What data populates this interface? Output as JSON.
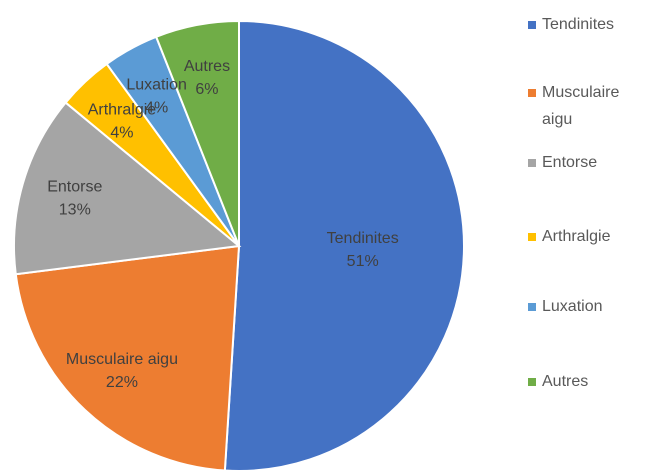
{
  "chart_data": {
    "type": "pie",
    "categories": [
      "Tendinites",
      "Musculaire aigu",
      "Entorse",
      "Arthralgie",
      "Luxation",
      "Autres"
    ],
    "values": [
      51,
      22,
      13,
      4,
      4,
      6
    ],
    "value_labels": [
      "51%",
      "22%",
      "13%",
      "4%",
      "4%",
      "6%"
    ],
    "colors": [
      "#4472c4",
      "#ed7d31",
      "#a5a5a5",
      "#ffc000",
      "#5b9bd5",
      "#70ad47"
    ],
    "legend": "right"
  }
}
